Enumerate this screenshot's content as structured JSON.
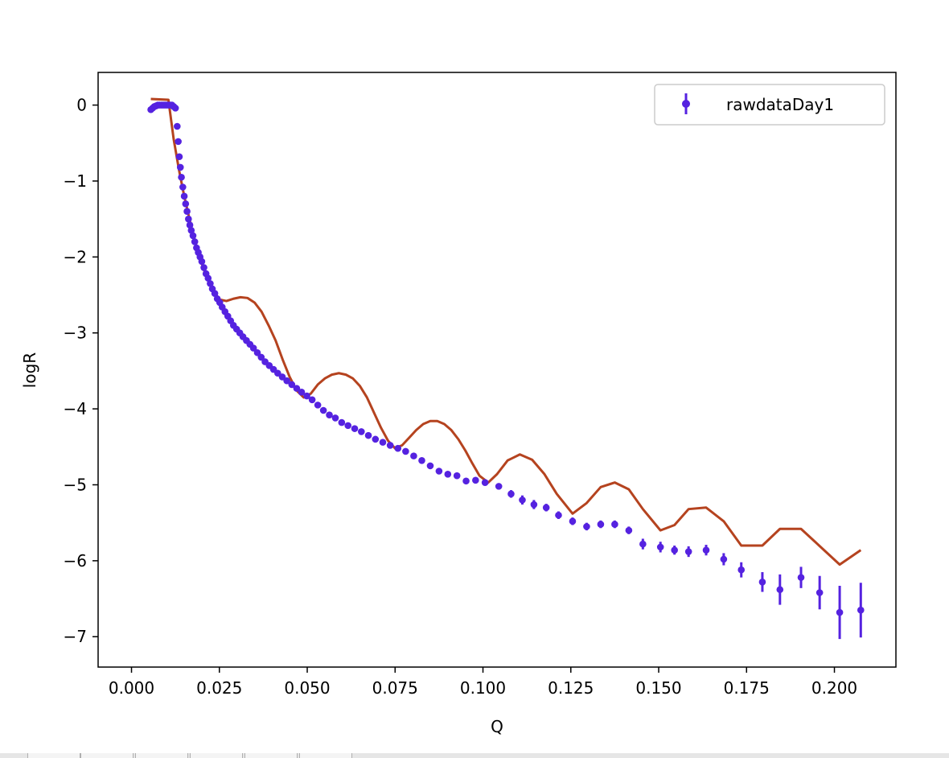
{
  "chart_data": {
    "type": "scatter",
    "xlabel": "Q",
    "ylabel": "logR",
    "xlim": [
      -0.0095,
      0.2175
    ],
    "ylim": [
      -7.4,
      0.43
    ],
    "xticks": [
      0.0,
      0.025,
      0.05,
      0.075,
      0.1,
      0.125,
      0.15,
      0.175,
      0.2
    ],
    "xtick_labels": [
      "0.000",
      "0.025",
      "0.050",
      "0.075",
      "0.100",
      "0.125",
      "0.150",
      "0.175",
      "0.200"
    ],
    "yticks": [
      0,
      -1,
      -2,
      -3,
      -4,
      -5,
      -6,
      -7
    ],
    "ytick_labels": [
      "0",
      "−1",
      "−2",
      "−3",
      "−4",
      "−5",
      "−6",
      "−7"
    ],
    "grid": false,
    "legend_position": "upper right",
    "series": [
      {
        "name": "rawdataDay1",
        "kind": "errorbar",
        "color": "#5522e0",
        "x": [
          0.0055,
          0.006,
          0.0065,
          0.007,
          0.0075,
          0.008,
          0.0085,
          0.009,
          0.0095,
          0.01,
          0.0105,
          0.011,
          0.0115,
          0.012,
          0.0125,
          0.013,
          0.0133,
          0.0136,
          0.0139,
          0.0142,
          0.0146,
          0.015,
          0.0154,
          0.0158,
          0.0162,
          0.0166,
          0.017,
          0.0175,
          0.018,
          0.0185,
          0.019,
          0.0195,
          0.02,
          0.0206,
          0.0212,
          0.0218,
          0.0224,
          0.023,
          0.0237,
          0.0244,
          0.0251,
          0.0258,
          0.0266,
          0.0274,
          0.0282,
          0.029,
          0.0299,
          0.0308,
          0.0317,
          0.0327,
          0.0337,
          0.0347,
          0.0358,
          0.0369,
          0.038,
          0.0392,
          0.0404,
          0.0416,
          0.0429,
          0.0442,
          0.0456,
          0.047,
          0.0484,
          0.0499,
          0.0514,
          0.053,
          0.0546,
          0.0563,
          0.058,
          0.0598,
          0.0616,
          0.0635,
          0.0654,
          0.0674,
          0.0694,
          0.0715,
          0.0736,
          0.0758,
          0.078,
          0.0803,
          0.0826,
          0.085,
          0.0875,
          0.09,
          0.0926,
          0.0952,
          0.0979,
          0.1006,
          0.1045,
          0.108,
          0.1112,
          0.1145,
          0.118,
          0.1215,
          0.1255,
          0.1295,
          0.1335,
          0.1375,
          0.1415,
          0.1455,
          0.1505,
          0.1545,
          0.1585,
          0.1635,
          0.1685,
          0.1735,
          0.1795,
          0.1845,
          0.1905,
          0.1958,
          0.2015,
          0.2075
        ],
        "y": [
          -0.06,
          -0.04,
          -0.02,
          -0.01,
          0.0,
          0.0,
          0.0,
          0.0,
          0.0,
          0.0,
          0.0,
          0.0,
          0.0,
          -0.02,
          -0.04,
          -0.28,
          -0.48,
          -0.68,
          -0.82,
          -0.95,
          -1.08,
          -1.2,
          -1.3,
          -1.4,
          -1.5,
          -1.58,
          -1.65,
          -1.72,
          -1.8,
          -1.88,
          -1.94,
          -2.0,
          -2.06,
          -2.14,
          -2.22,
          -2.28,
          -2.35,
          -2.42,
          -2.48,
          -2.55,
          -2.6,
          -2.66,
          -2.72,
          -2.78,
          -2.84,
          -2.9,
          -2.95,
          -3.0,
          -3.05,
          -3.1,
          -3.15,
          -3.2,
          -3.26,
          -3.32,
          -3.38,
          -3.43,
          -3.48,
          -3.53,
          -3.58,
          -3.63,
          -3.68,
          -3.73,
          -3.78,
          -3.83,
          -3.88,
          -3.95,
          -4.02,
          -4.08,
          -4.12,
          -4.18,
          -4.22,
          -4.26,
          -4.3,
          -4.35,
          -4.4,
          -4.44,
          -4.48,
          -4.52,
          -4.56,
          -4.62,
          -4.68,
          -4.75,
          -4.82,
          -4.86,
          -4.88,
          -4.95,
          -4.94,
          -4.97,
          -5.02,
          -5.12,
          -5.2,
          -5.26,
          -5.3,
          -5.4,
          -5.48,
          -5.55,
          -5.52,
          -5.52,
          -5.6,
          -5.78,
          -5.82,
          -5.86,
          -5.88,
          -5.86,
          -5.98,
          -6.12,
          -6.28,
          -6.38,
          -6.22,
          -6.42,
          -6.68,
          -6.65
        ],
        "yerr": [
          0.02,
          0.02,
          0.02,
          0.02,
          0.02,
          0.02,
          0.02,
          0.02,
          0.02,
          0.02,
          0.02,
          0.02,
          0.02,
          0.02,
          0.02,
          0.02,
          0.02,
          0.02,
          0.02,
          0.02,
          0.02,
          0.02,
          0.02,
          0.02,
          0.02,
          0.02,
          0.02,
          0.02,
          0.02,
          0.02,
          0.02,
          0.02,
          0.02,
          0.02,
          0.02,
          0.02,
          0.02,
          0.02,
          0.02,
          0.02,
          0.02,
          0.02,
          0.02,
          0.02,
          0.02,
          0.02,
          0.02,
          0.02,
          0.02,
          0.02,
          0.02,
          0.02,
          0.02,
          0.02,
          0.02,
          0.02,
          0.02,
          0.02,
          0.02,
          0.02,
          0.02,
          0.02,
          0.02,
          0.02,
          0.02,
          0.02,
          0.02,
          0.02,
          0.02,
          0.02,
          0.02,
          0.02,
          0.02,
          0.02,
          0.02,
          0.02,
          0.02,
          0.02,
          0.02,
          0.02,
          0.02,
          0.02,
          0.02,
          0.02,
          0.02,
          0.04,
          0.03,
          0.03,
          0.04,
          0.05,
          0.06,
          0.06,
          0.05,
          0.05,
          0.05,
          0.05,
          0.05,
          0.05,
          0.05,
          0.07,
          0.07,
          0.06,
          0.07,
          0.07,
          0.08,
          0.1,
          0.13,
          0.2,
          0.14,
          0.22,
          0.35,
          0.36
        ]
      },
      {
        "name": "",
        "kind": "line",
        "color": "#b5431f",
        "x": [
          0.0055,
          0.0105,
          0.012,
          0.0135,
          0.015,
          0.017,
          0.019,
          0.021,
          0.023,
          0.025,
          0.027,
          0.029,
          0.031,
          0.033,
          0.035,
          0.037,
          0.039,
          0.041,
          0.043,
          0.045,
          0.047,
          0.049,
          0.051,
          0.053,
          0.055,
          0.057,
          0.059,
          0.061,
          0.063,
          0.065,
          0.067,
          0.069,
          0.071,
          0.073,
          0.075,
          0.077,
          0.079,
          0.081,
          0.083,
          0.085,
          0.087,
          0.089,
          0.091,
          0.093,
          0.095,
          0.097,
          0.099,
          0.1015,
          0.104,
          0.107,
          0.1105,
          0.114,
          0.1175,
          0.121,
          0.1255,
          0.1295,
          0.1335,
          0.1375,
          0.1415,
          0.1455,
          0.1505,
          0.1545,
          0.1585,
          0.1635,
          0.1685,
          0.1735,
          0.1795,
          0.1845,
          0.1905,
          0.2015,
          0.2075
        ],
        "y": [
          0.08,
          0.07,
          -0.45,
          -0.85,
          -1.2,
          -1.6,
          -1.95,
          -2.22,
          -2.42,
          -2.56,
          -2.58,
          -2.55,
          -2.53,
          -2.54,
          -2.6,
          -2.72,
          -2.9,
          -3.1,
          -3.35,
          -3.58,
          -3.76,
          -3.85,
          -3.8,
          -3.68,
          -3.6,
          -3.55,
          -3.53,
          -3.55,
          -3.6,
          -3.7,
          -3.85,
          -4.05,
          -4.25,
          -4.42,
          -4.52,
          -4.48,
          -4.38,
          -4.28,
          -4.2,
          -4.16,
          -4.16,
          -4.2,
          -4.28,
          -4.4,
          -4.55,
          -4.72,
          -4.88,
          -4.97,
          -4.86,
          -4.68,
          -4.6,
          -4.67,
          -4.86,
          -5.12,
          -5.38,
          -5.24,
          -5.03,
          -4.97,
          -5.06,
          -5.32,
          -5.6,
          -5.53,
          -5.32,
          -5.3,
          -5.48,
          -5.8,
          -5.8,
          -5.58,
          -5.58,
          -6.05,
          -5.86
        ]
      }
    ],
    "legend": [
      {
        "label": "rawdataDay1",
        "marker": "errorbar-dot",
        "color": "#5522e0"
      }
    ]
  }
}
